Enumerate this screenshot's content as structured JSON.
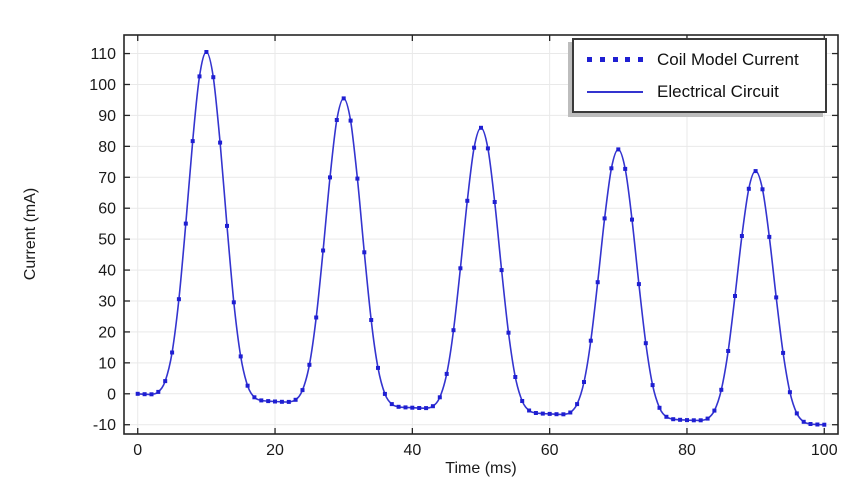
{
  "figure": {
    "xlabel": "Time (ms)",
    "ylabel": "Current (mA)",
    "background": "#ffffff"
  },
  "legend": {
    "position": "top-right",
    "entries": [
      {
        "label": "Coil Model Current",
        "style": "dotted",
        "color": "#1f1fd2"
      },
      {
        "label": "Electrical Circuit",
        "style": "solid",
        "color": "#3434cf"
      }
    ]
  },
  "chart_data": {
    "type": "line",
    "title": "",
    "xlabel": "Time (ms)",
    "ylabel": "Current (mA)",
    "xlim": [
      -2,
      102
    ],
    "ylim": [
      -13,
      116
    ],
    "xticks": [
      0,
      20,
      40,
      60,
      80,
      100
    ],
    "yticks": [
      -10,
      0,
      10,
      20,
      30,
      40,
      50,
      60,
      70,
      80,
      90,
      100,
      110
    ],
    "grid": true,
    "legend_position": "top-right",
    "colors": {
      "dots": "#1f1fd2",
      "line": "#3434cf",
      "grid": "#e9e9e9",
      "axis": "#262626",
      "text": "#1a1a1a"
    },
    "x": [
      0,
      1,
      2,
      3,
      4,
      5,
      6,
      7,
      8,
      9,
      10,
      11,
      12,
      13,
      14,
      15,
      16,
      17,
      18,
      19,
      20,
      21,
      22,
      23,
      24,
      25,
      26,
      27,
      28,
      29,
      30,
      31,
      32,
      33,
      34,
      35,
      36,
      37,
      38,
      39,
      40,
      41,
      42,
      43,
      44,
      45,
      46,
      47,
      48,
      49,
      50,
      51,
      52,
      53,
      54,
      55,
      56,
      57,
      58,
      59,
      60,
      61,
      62,
      63,
      64,
      65,
      66,
      67,
      68,
      69,
      70,
      71,
      72,
      73,
      74,
      75,
      76,
      77,
      78,
      79,
      80,
      81,
      82,
      83,
      84,
      85,
      86,
      87,
      88,
      89,
      90,
      91,
      92,
      93,
      94,
      95,
      96,
      97,
      98,
      99,
      100
    ],
    "current_mA": [
      0,
      -0.12,
      -0.15,
      0.6,
      4.11,
      13.34,
      30.58,
      55.04,
      81.7,
      102.62,
      110.5,
      102.37,
      81.2,
      54.29,
      29.58,
      12.09,
      2.61,
      -1.15,
      -2.15,
      -2.37,
      -2.5,
      -2.6,
      -2.61,
      -1.93,
      1.18,
      9.38,
      24.66,
      46.34,
      69.96,
      88.51,
      95.5,
      88.31,
      69.56,
      45.74,
      23.86,
      8.38,
      -0.02,
      -3.33,
      -4.21,
      -4.4,
      -4.5,
      -4.6,
      -4.62,
      -4.0,
      -1.13,
      6.44,
      20.56,
      40.58,
      62.41,
      79.55,
      86.0,
      79.35,
      62.01,
      39.98,
      19.76,
      5.44,
      -2.33,
      -5.4,
      -6.22,
      -6.4,
      -6.5,
      -6.6,
      -6.62,
      -6.04,
      -3.33,
      3.81,
      17.15,
      36.08,
      56.71,
      72.91,
      79.0,
      72.71,
      56.31,
      35.48,
      16.35,
      2.81,
      -4.53,
      -7.44,
      -8.22,
      -8.4,
      -8.5,
      -8.57,
      -8.58,
      -8.01,
      -5.45,
      1.28,
      13.83,
      31.63,
      51.03,
      66.26,
      72.0,
      66.11,
      50.73,
      31.18,
      13.23,
      0.53,
      -6.35,
      -9.06,
      -9.78,
      -9.92,
      -10.0
    ],
    "series": [
      {
        "name": "Coil Model Current",
        "style": "dotted",
        "data_key": "current_mA"
      },
      {
        "name": "Electrical Circuit",
        "style": "solid",
        "data_key": "current_mA"
      }
    ]
  }
}
